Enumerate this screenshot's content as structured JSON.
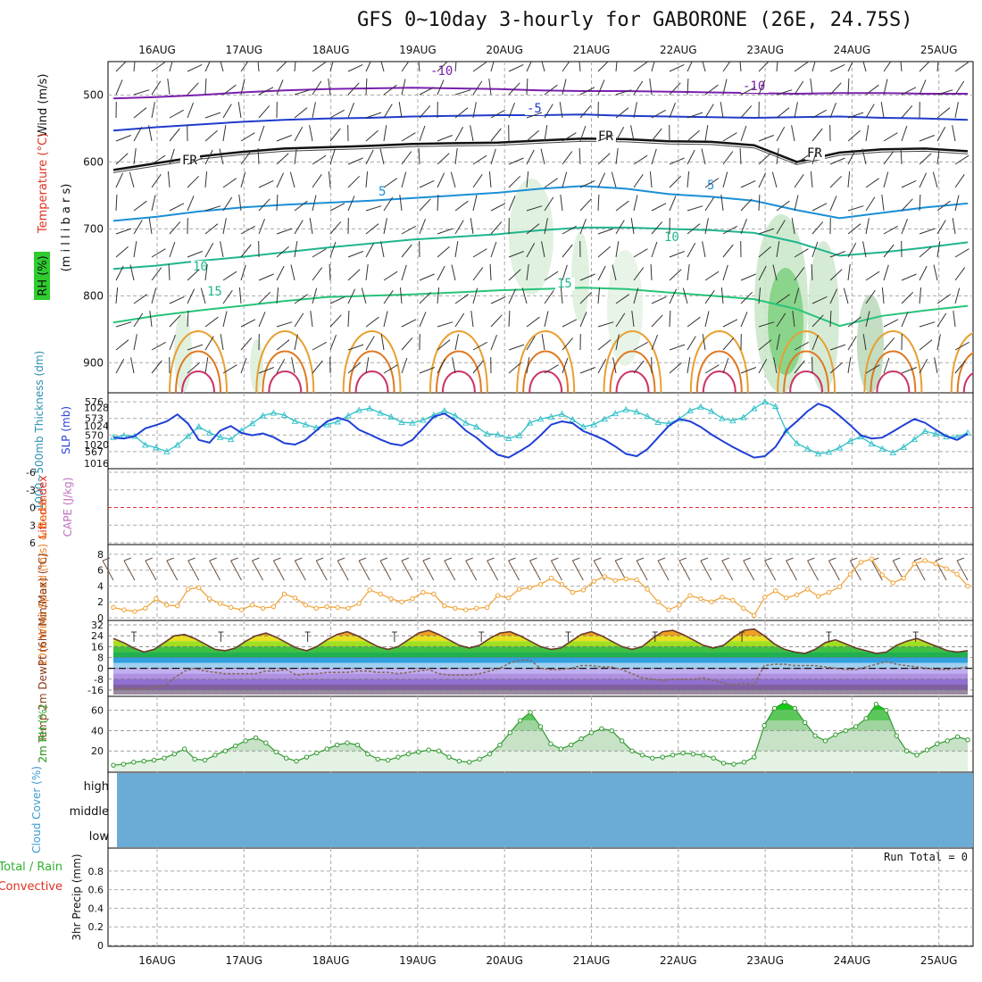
{
  "header": {
    "title": "GFS 0~10day 3-hourly for GABORONE (26E, 24.75S)"
  },
  "chart_data": [
    {
      "id": "upper-air",
      "type": "line",
      "dates": [
        "16AUG",
        "17AUG",
        "18AUG",
        "19AUG",
        "20AUG",
        "21AUG",
        "22AUG",
        "23AUG",
        "24AUG",
        "25AUG"
      ],
      "ylabel_wind": "Wind (m/s)",
      "ylabel_temp": "Temperature (°C)",
      "ylabel_rh": "RH (%)",
      "ylabel_pressure": "(m i l l i b a r s)",
      "y_ticks": [
        500,
        600,
        700,
        800,
        900
      ],
      "ylim": [
        450,
        945
      ],
      "contour_labels": [
        "-10",
        "-5",
        "FR",
        "5",
        "10",
        "15"
      ],
      "isotherms": [
        {
          "label": "-10",
          "color": "#7b1fb0",
          "pressure": [
            505,
            503,
            500,
            496,
            493,
            491,
            490,
            489,
            490,
            491,
            493,
            494,
            494,
            495,
            496,
            497,
            498,
            497,
            497,
            498,
            498
          ]
        },
        {
          "label": "-5",
          "color": "#1f3ccc",
          "pressure": [
            553,
            548,
            544,
            540,
            537,
            535,
            534,
            532,
            531,
            530,
            530,
            529,
            531,
            532,
            533,
            534,
            533,
            532,
            534,
            535,
            537
          ]
        },
        {
          "label": "FR",
          "color": "#111111",
          "pressure": [
            612,
            602,
            592,
            585,
            580,
            578,
            576,
            573,
            572,
            571,
            568,
            565,
            566,
            569,
            570,
            575,
            600,
            586,
            581,
            580,
            584
          ]
        },
        {
          "label": "5",
          "color": "#1b8fd6",
          "pressure": [
            688,
            682,
            674,
            668,
            664,
            661,
            658,
            654,
            650,
            646,
            640,
            636,
            640,
            648,
            652,
            658,
            672,
            684,
            676,
            668,
            662
          ]
        },
        {
          "label": "10",
          "color": "#1fb58e",
          "pressure": [
            760,
            755,
            748,
            742,
            735,
            728,
            722,
            716,
            712,
            708,
            702,
            698,
            698,
            700,
            702,
            706,
            720,
            740,
            735,
            728,
            720
          ]
        },
        {
          "label": "15",
          "color": "#27c47a",
          "pressure": [
            840,
            830,
            822,
            815,
            808,
            802,
            800,
            798,
            795,
            792,
            790,
            788,
            790,
            795,
            800,
            805,
            820,
            845,
            830,
            822,
            815
          ]
        }
      ]
    },
    {
      "id": "thickness-slp",
      "type": "line",
      "ylabel_left": "1000~500mb Thickness (dm)",
      "ylabel_right": "SLP (mb)",
      "left_ticks": [
        576,
        573,
        570,
        567
      ],
      "right_ticks": [
        1028,
        1024,
        1020,
        1016
      ],
      "series": [
        {
          "key": "thickness",
          "color": "#2ec0c8",
          "values": [
            569.6,
            569.9,
            569.8,
            568.2,
            567.7,
            567.0,
            568.2,
            569.8,
            571.5,
            570.4,
            569.6,
            569.2,
            570.8,
            572.1,
            573.5,
            574.0,
            573.6,
            572.5,
            571.9,
            571.3,
            571.9,
            572.4,
            573.5,
            574.5,
            574.8,
            574.0,
            573.3,
            572.3,
            572.2,
            572.7,
            573.6,
            574.4,
            573.5,
            572.2,
            571.5,
            570.2,
            570.1,
            569.4,
            569.9,
            572.2,
            572.9,
            573.3,
            573.8,
            572.8,
            571.5,
            571.9,
            572.9,
            573.9,
            574.6,
            574.2,
            573.4,
            572.3,
            572.1,
            572.9,
            574.4,
            575.1,
            574.3,
            573.0,
            572.6,
            573.2,
            574.8,
            576.0,
            575.2,
            570.8,
            568.5,
            567.5,
            566.6,
            566.9,
            567.7,
            568.9,
            569.7,
            568.4,
            567.5,
            566.8,
            567.8,
            569.2,
            570.7,
            570.2,
            569.7,
            569.6,
            570.4
          ]
        },
        {
          "key": "slp",
          "color": "#1e3fd6",
          "values": [
            1021.5,
            1021.3,
            1021.8,
            1023.5,
            1024.2,
            1025.0,
            1026.5,
            1024.5,
            1021.0,
            1020.4,
            1023.0,
            1024.0,
            1022.5,
            1022.0,
            1022.4,
            1021.6,
            1020.3,
            1020.0,
            1021.0,
            1023.0,
            1025.0,
            1025.8,
            1025.1,
            1023.2,
            1022.2,
            1021.1,
            1020.2,
            1019.8,
            1021.0,
            1023.5,
            1026.0,
            1026.7,
            1025.2,
            1023.0,
            1021.5,
            1019.5,
            1017.8,
            1017.2,
            1018.5,
            1019.9,
            1022.0,
            1024.3,
            1025.0,
            1024.6,
            1022.9,
            1022.0,
            1021.0,
            1019.6,
            1018.0,
            1017.5,
            1019.0,
            1021.5,
            1024.0,
            1025.5,
            1025.0,
            1023.8,
            1022.2,
            1020.8,
            1019.5,
            1018.3,
            1017.2,
            1017.5,
            1019.5,
            1023.0,
            1025.0,
            1027.2,
            1028.8,
            1028.0,
            1026.2,
            1024.2,
            1022.0,
            1021.3,
            1021.5,
            1022.8,
            1024.2,
            1025.5,
            1024.7,
            1023.2,
            1021.8,
            1021.0,
            1022.3
          ]
        }
      ]
    },
    {
      "id": "stability",
      "type": "line",
      "ylabel_left": "Lifted Index",
      "ylabel_right": "CAPE (J/kg)",
      "left_ticks": [
        "-6",
        "-3",
        "0",
        "3",
        "6"
      ]
    },
    {
      "id": "wind10m",
      "type": "line",
      "ylabel": "10m Wind Speed (m/s) & Barbs",
      "y_ticks": [
        8,
        6,
        4,
        2,
        0
      ],
      "ylim": [
        0,
        9
      ],
      "series": [
        {
          "key": "wind-speed",
          "color": "#f0a030",
          "values": [
            1.3,
            1.0,
            0.8,
            1.2,
            2.4,
            1.6,
            1.5,
            3.6,
            3.8,
            2.4,
            1.8,
            1.3,
            1.0,
            1.6,
            1.2,
            1.4,
            3.0,
            2.5,
            1.6,
            1.2,
            1.4,
            1.3,
            1.2,
            1.8,
            3.5,
            3.0,
            2.4,
            2.0,
            2.4,
            3.2,
            3.0,
            1.5,
            1.2,
            1.0,
            1.2,
            1.3,
            2.8,
            2.5,
            3.6,
            3.8,
            4.2,
            5.0,
            4.2,
            3.2,
            3.5,
            4.6,
            5.2,
            4.7,
            4.9,
            4.8,
            3.6,
            2.0,
            1.0,
            1.6,
            2.8,
            2.4,
            2.0,
            2.6,
            2.2,
            1.2,
            0.3,
            2.6,
            3.4,
            2.5,
            2.9,
            3.6,
            2.7,
            3.2,
            3.9,
            5.5,
            7.0,
            7.4,
            5.4,
            4.4,
            5.0,
            6.8,
            7.2,
            6.8,
            6.2,
            5.5,
            4.0
          ]
        }
      ]
    },
    {
      "id": "temp2m",
      "type": "line",
      "ylabel": "2m Temp 2m DewPt (6hr Min/Max) (°C)",
      "y_ticks": [
        "32",
        "24",
        "16",
        "8",
        "0",
        "-8",
        "-16"
      ],
      "ylim": [
        -20,
        34
      ],
      "series": [
        {
          "key": "temperature",
          "color": "#6a3a2a",
          "values": [
            22,
            19,
            15,
            12,
            14,
            19,
            24,
            25,
            22,
            18,
            14,
            13,
            15,
            20,
            24,
            26,
            23,
            19,
            15,
            13,
            16,
            21,
            25,
            27,
            24,
            20,
            16,
            14,
            16,
            21,
            26,
            28,
            25,
            21,
            17,
            15,
            17,
            22,
            26,
            27,
            24,
            20,
            16,
            14,
            15,
            20,
            25,
            27,
            24,
            20,
            16,
            14,
            16,
            22,
            27,
            28,
            25,
            21,
            17,
            15,
            17,
            23,
            28,
            29,
            24,
            18,
            14,
            12,
            11,
            14,
            19,
            21,
            18,
            15,
            13,
            11,
            12,
            17,
            20,
            22,
            19,
            16,
            13,
            12,
            13
          ]
        },
        {
          "key": "dewpoint",
          "color": "#8a6a60",
          "values": [
            -15,
            -15,
            -15,
            -15,
            -14,
            -13,
            -7,
            -2,
            0,
            -2,
            -3,
            -4,
            -4,
            -4,
            -4,
            -2,
            -2,
            -1,
            -5,
            -4,
            -4,
            -3,
            -3,
            -3,
            -2,
            -2,
            -3,
            -3,
            -4,
            -3,
            -2,
            -1,
            -4,
            -5,
            -5,
            -5,
            -4,
            -2,
            0,
            4,
            6,
            6,
            0,
            -1,
            -1,
            0,
            2,
            2,
            1,
            1,
            -1,
            -4,
            -7,
            -8,
            -9,
            -8,
            -8,
            -8,
            -7,
            -9,
            -11,
            -12,
            -11,
            -12,
            2,
            3,
            3,
            2,
            2,
            2,
            1,
            0,
            -1,
            -1,
            1,
            3,
            5,
            3,
            2,
            1,
            0,
            -1,
            -1,
            0,
            1
          ]
        }
      ]
    },
    {
      "id": "rh2m",
      "type": "area",
      "ylabel": "2m RH (%)",
      "y_ticks": [
        60,
        40,
        20
      ],
      "ylim": [
        0,
        72
      ],
      "series": [
        {
          "key": "rh",
          "color": "#2f9a2f",
          "values": [
            6,
            7,
            9,
            10,
            11,
            13,
            17,
            22,
            12,
            11,
            16,
            20,
            25,
            30,
            33,
            28,
            19,
            13,
            10,
            14,
            18,
            22,
            26,
            28,
            26,
            17,
            12,
            11,
            14,
            17,
            19,
            21,
            20,
            14,
            10,
            9,
            12,
            17,
            26,
            38,
            50,
            58,
            44,
            27,
            22,
            26,
            32,
            38,
            42,
            40,
            30,
            20,
            16,
            13,
            14,
            16,
            18,
            17,
            16,
            13,
            8,
            7,
            9,
            14,
            45,
            62,
            68,
            62,
            48,
            35,
            30,
            36,
            40,
            44,
            52,
            66,
            60,
            35,
            20,
            16,
            21,
            27,
            30,
            34,
            31
          ]
        }
      ]
    },
    {
      "id": "cloud",
      "type": "heatmap",
      "ylabel": "Cloud Cover (%)",
      "levels": [
        "high",
        "middle",
        "low"
      ]
    },
    {
      "id": "precip",
      "type": "bar",
      "ylabel_total": "Total / Rain",
      "ylabel_conv": "Convective",
      "ylabel": "3hr Precip (mm)",
      "y_ticks": [
        "0.8",
        "0.6",
        "0.4",
        "0.2",
        "0"
      ],
      "ylim": [
        0,
        1
      ],
      "run_total": "Run Total = 0"
    }
  ]
}
